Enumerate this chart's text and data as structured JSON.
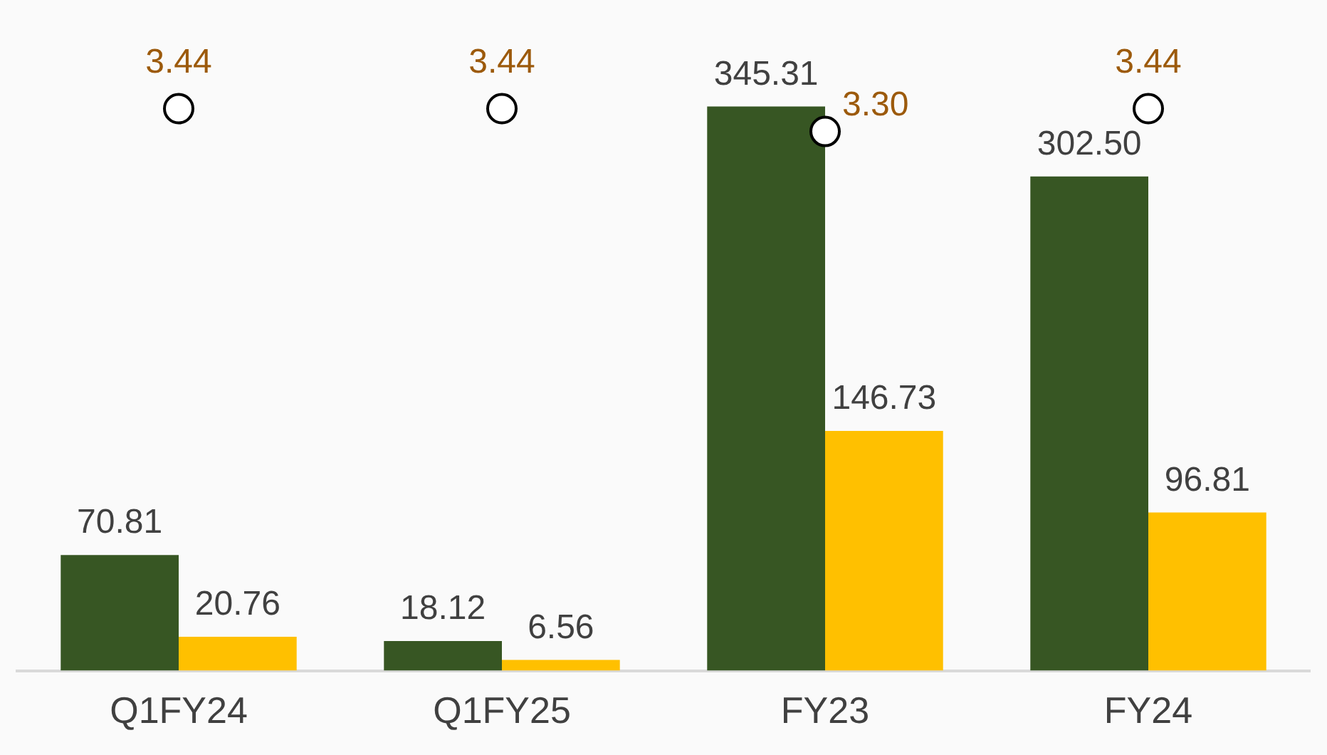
{
  "chart_data": {
    "type": "bar",
    "categories": [
      "Q1FY24",
      "Q1FY25",
      "FY23",
      "FY24"
    ],
    "series": [
      {
        "color": "#375623",
        "values": [
          70.81,
          18.12,
          345.31,
          302.5
        ],
        "value_labels": [
          "70.81",
          "18.12",
          "345.31",
          "302.50"
        ]
      },
      {
        "color": "#ffc000",
        "values": [
          20.76,
          6.56,
          146.73,
          96.81
        ],
        "value_labels": [
          "20.76",
          "6.56",
          "146.73",
          "96.81"
        ]
      },
      {
        "type": "scatter",
        "axis": "y2",
        "color": "#ffffff",
        "values": [
          3.44,
          3.44,
          3.3,
          3.44
        ],
        "value_labels": [
          "3.44",
          "3.44",
          "3.30",
          "3.44"
        ]
      }
    ],
    "marker": "circle",
    "tick_labels": "x",
    "grid": false,
    "legend": false
  }
}
